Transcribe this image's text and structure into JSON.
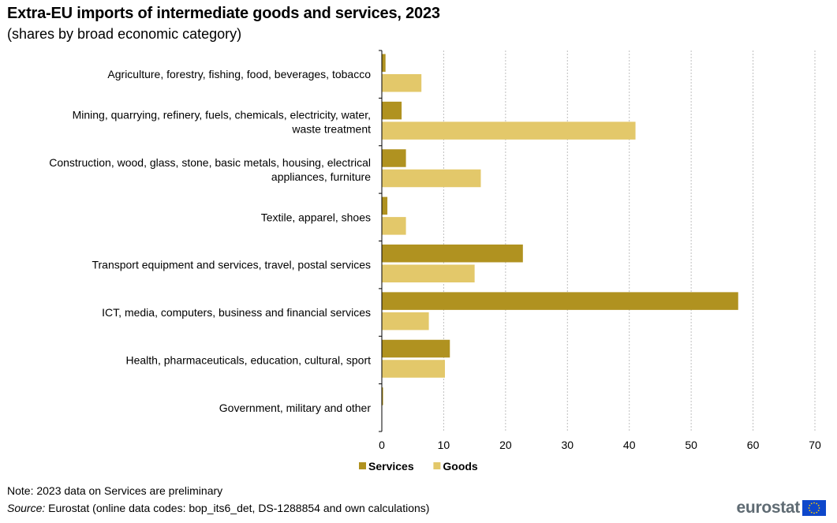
{
  "chart_data": {
    "type": "bar",
    "orientation": "horizontal",
    "title": "Extra-EU imports of intermediate goods and services, 2023",
    "subtitle": "(shares by broad economic category)",
    "categories": [
      [
        "Agriculture, forestry, fishing, food, beverages, tobacco"
      ],
      [
        "Mining, quarrying, refinery, fuels, chemicals, electricity, water,",
        "waste treatment"
      ],
      [
        "Construction, wood, glass, stone, basic metals, housing, electrical",
        "appliances, furniture"
      ],
      [
        "Textile, apparel, shoes"
      ],
      [
        "Transport equipment and services, travel, postal services"
      ],
      [
        "ICT, media, computers, business and financial services"
      ],
      [
        "Health, pharmaceuticals, education, cultural, sport"
      ],
      [
        "Government, military and other"
      ]
    ],
    "series": [
      {
        "name": "Services",
        "color": "#b09220",
        "values": [
          0.6,
          3.2,
          3.9,
          0.9,
          22.8,
          57.6,
          11.0,
          0.2
        ]
      },
      {
        "name": "Goods",
        "color": "#e3c86a",
        "values": [
          6.4,
          41.0,
          16.0,
          3.9,
          15.0,
          7.6,
          10.2,
          0.0
        ]
      }
    ],
    "xlim": [
      0,
      70
    ],
    "xticks": [
      "0",
      "10",
      "20",
      "30",
      "40",
      "50",
      "60",
      "70"
    ],
    "grid": true,
    "legend_position": "bottom"
  },
  "footer": {
    "note": "Note: 2023 data on Services are preliminary",
    "source_label": "Source:",
    "source_text": " Eurostat (online data codes: bop_its6_det, DS-1288854 and own calculations)",
    "logo": "eurostat"
  },
  "colors": {
    "services": "#b09220",
    "goods": "#e3c86a",
    "grid": "#bfbfbf",
    "flag_blue": "#0e47cb",
    "flag_star": "#ffcc00"
  }
}
